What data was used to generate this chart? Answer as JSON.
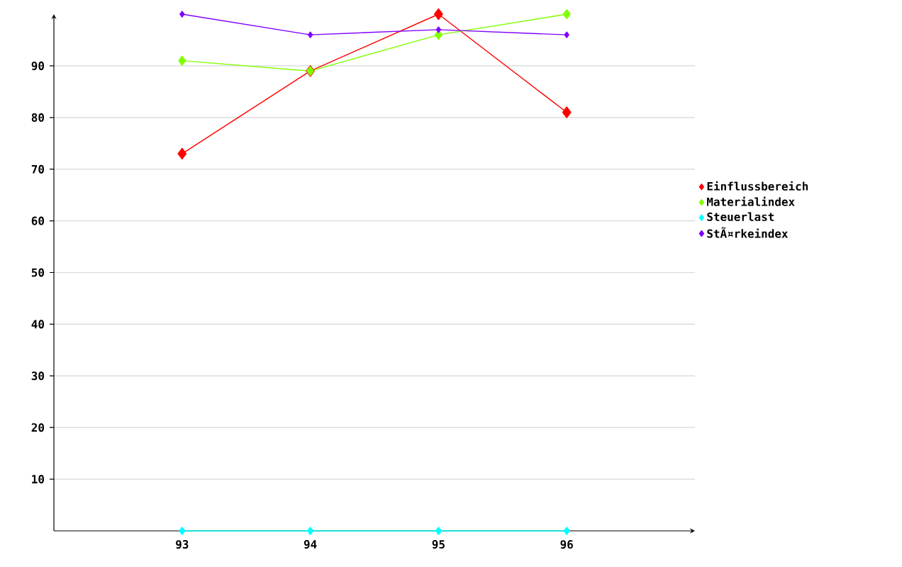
{
  "chart_data": {
    "type": "line",
    "categories": [
      "93",
      "94",
      "95",
      "96"
    ],
    "series": [
      {
        "name": "Einflussbereich",
        "color": "#ff0000",
        "values": [
          73,
          89,
          100,
          81
        ]
      },
      {
        "name": "Materialindex",
        "color": "#80ff00",
        "values": [
          91,
          89,
          96,
          100
        ]
      },
      {
        "name": "Steuerlast",
        "color": "#00ffff",
        "values": [
          0,
          0,
          0,
          0
        ]
      },
      {
        "name": "StÃ¤rkeindex",
        "color": "#8000ff",
        "values": [
          100,
          96,
          97,
          96
        ]
      }
    ],
    "ylim": [
      0,
      100
    ],
    "yticks": [
      10,
      20,
      30,
      40,
      50,
      60,
      70,
      80,
      90
    ],
    "grid": "y",
    "legend": "right",
    "marker": "diamond",
    "line_style": "solid"
  }
}
